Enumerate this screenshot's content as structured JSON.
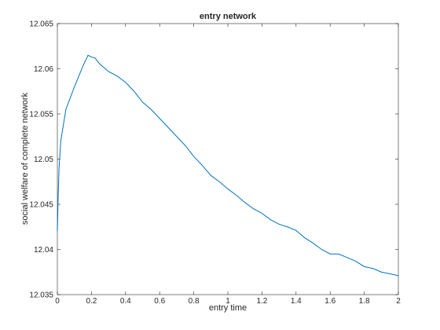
{
  "chart_data": {
    "type": "line",
    "title": "entry network",
    "xlabel": "entry time",
    "ylabel": "social welfare of complete network",
    "x": [
      0,
      0.005,
      0.01,
      0.02,
      0.05,
      0.1,
      0.15,
      0.18,
      0.2,
      0.22,
      0.25,
      0.3,
      0.35,
      0.4,
      0.45,
      0.5,
      0.55,
      0.6,
      0.65,
      0.7,
      0.75,
      0.8,
      0.85,
      0.9,
      0.95,
      1.0,
      1.05,
      1.1,
      1.15,
      1.2,
      1.25,
      1.3,
      1.35,
      1.4,
      1.45,
      1.5,
      1.55,
      1.6,
      1.65,
      1.7,
      1.75,
      1.8,
      1.85,
      1.9,
      1.95,
      2.0
    ],
    "values": [
      12.042,
      12.046,
      12.049,
      12.052,
      12.0555,
      12.058,
      12.0603,
      12.0615,
      12.0613,
      12.0612,
      12.0605,
      12.0597,
      12.0592,
      12.0585,
      12.0575,
      12.0563,
      12.0555,
      12.0545,
      12.0535,
      12.0525,
      12.0515,
      12.0503,
      12.0493,
      12.0482,
      12.0475,
      12.0467,
      12.046,
      12.0452,
      12.0445,
      12.044,
      12.0433,
      12.0428,
      12.0425,
      12.0421,
      12.0413,
      12.0407,
      12.04,
      12.0395,
      12.0395,
      12.0391,
      12.0387,
      12.0381,
      12.0379,
      12.0375,
      12.0373,
      12.0371
    ],
    "color": "#0072bd",
    "xlim": [
      0,
      2
    ],
    "xticks": [
      0,
      0.2,
      0.4,
      0.6,
      0.8,
      1,
      1.2,
      1.4,
      1.6,
      1.8,
      2
    ],
    "ylim": [
      12.035,
      12.065
    ],
    "yticks": [
      12.035,
      12.04,
      12.045,
      12.05,
      12.055,
      12.06,
      12.065
    ],
    "grid": false
  }
}
